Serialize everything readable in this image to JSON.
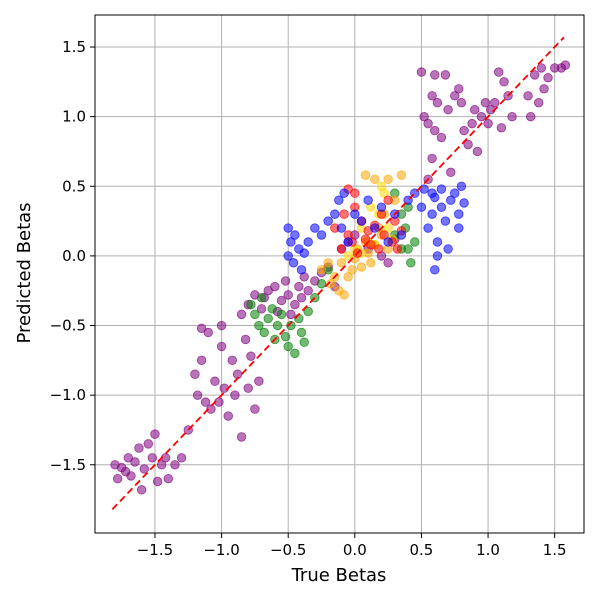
{
  "chart_data": {
    "type": "scatter",
    "xlabel": "True Betas",
    "ylabel": "Predicted Betas",
    "xlim": [
      -1.95,
      1.72
    ],
    "ylim": [
      -1.99,
      1.73
    ],
    "xticks": [
      -1.5,
      -1.0,
      -0.5,
      0.0,
      0.5,
      1.0,
      1.5
    ],
    "yticks": [
      -1.5,
      -1.0,
      -0.5,
      0.0,
      0.5,
      1.0,
      1.5
    ],
    "xtick_labels": [
      "−1.5",
      "−1.0",
      "−0.5",
      "0.0",
      "0.5",
      "1.0",
      "1.5"
    ],
    "ytick_labels": [
      "−1.5",
      "−1.0",
      "−0.5",
      "0.0",
      "0.5",
      "1.0",
      "1.5"
    ],
    "grid": true,
    "reference_line": {
      "x": [
        -1.82,
        1.57
      ],
      "y": [
        -1.82,
        1.57
      ],
      "color": "#ff0000",
      "style": "dashed"
    },
    "series": [
      {
        "color": "#800080",
        "points": [
          [
            -1.8,
            -1.5
          ],
          [
            -1.78,
            -1.6
          ],
          [
            -1.75,
            -1.52
          ],
          [
            -1.72,
            -1.55
          ],
          [
            -1.7,
            -1.45
          ],
          [
            -1.68,
            -1.58
          ],
          [
            -1.65,
            -1.48
          ],
          [
            -1.62,
            -1.38
          ],
          [
            -1.6,
            -1.68
          ],
          [
            -1.58,
            -1.53
          ],
          [
            -1.55,
            -1.35
          ],
          [
            -1.52,
            -1.45
          ],
          [
            -1.5,
            -1.28
          ],
          [
            -1.48,
            -1.62
          ],
          [
            -1.45,
            -1.5
          ],
          [
            -1.42,
            -1.45
          ],
          [
            -1.4,
            -1.6
          ],
          [
            -1.35,
            -1.5
          ],
          [
            -1.3,
            -1.45
          ],
          [
            -1.25,
            -1.25
          ],
          [
            -1.2,
            -0.85
          ],
          [
            -1.18,
            -1.0
          ],
          [
            -1.15,
            -0.75
          ],
          [
            -1.12,
            -1.05
          ],
          [
            -1.1,
            -0.55
          ],
          [
            -1.08,
            -1.1
          ],
          [
            -1.05,
            -0.9
          ],
          [
            -1.02,
            -1.05
          ],
          [
            -1.0,
            -0.65
          ],
          [
            -0.98,
            -0.95
          ],
          [
            -0.95,
            -1.15
          ],
          [
            -0.92,
            -0.75
          ],
          [
            -0.9,
            -1.0
          ],
          [
            -0.88,
            -0.85
          ],
          [
            -0.85,
            -1.3
          ],
          [
            -0.82,
            -0.6
          ],
          [
            -0.8,
            -0.95
          ],
          [
            -0.78,
            -0.72
          ],
          [
            -0.75,
            -1.1
          ],
          [
            -0.72,
            -0.9
          ],
          [
            -1.15,
            -0.52
          ],
          [
            -1.0,
            -0.5
          ],
          [
            -0.85,
            -0.42
          ],
          [
            -0.8,
            -0.35
          ],
          [
            -0.75,
            -0.28
          ],
          [
            -0.7,
            -0.38
          ],
          [
            -0.68,
            -0.3
          ],
          [
            -0.65,
            -0.25
          ],
          [
            -0.6,
            -0.22
          ],
          [
            -0.58,
            -0.4
          ],
          [
            -0.55,
            -0.32
          ],
          [
            -0.52,
            -0.18
          ],
          [
            -0.5,
            -0.28
          ],
          [
            -0.48,
            -0.42
          ],
          [
            -0.45,
            -0.35
          ],
          [
            -0.42,
            -0.22
          ],
          [
            -0.4,
            -0.3
          ],
          [
            -0.38,
            -0.15
          ],
          [
            -0.35,
            -0.25
          ],
          [
            -0.3,
            -0.18
          ],
          [
            -0.25,
            -0.12
          ],
          [
            -0.2,
            -0.08
          ],
          [
            -0.15,
            -0.22
          ],
          [
            -0.1,
            0.05
          ],
          [
            -0.05,
            0.1
          ],
          [
            0.0,
            0.15
          ],
          [
            0.1,
            0.05
          ],
          [
            0.2,
            0.0
          ],
          [
            0.3,
            0.12
          ],
          [
            0.25,
            -0.05
          ],
          [
            0.5,
            1.32
          ],
          [
            0.52,
            1.0
          ],
          [
            0.55,
            0.95
          ],
          [
            0.58,
            1.15
          ],
          [
            0.6,
            1.3
          ],
          [
            0.55,
            0.55
          ],
          [
            0.58,
            0.7
          ],
          [
            0.6,
            0.9
          ],
          [
            0.62,
            1.1
          ],
          [
            0.65,
            0.85
          ],
          [
            0.68,
            1.3
          ],
          [
            0.7,
            1.05
          ],
          [
            0.72,
            0.6
          ],
          [
            0.75,
            1.15
          ],
          [
            0.78,
            1.2
          ],
          [
            0.8,
            1.1
          ],
          [
            0.82,
            0.9
          ],
          [
            0.85,
            0.8
          ],
          [
            0.88,
            0.95
          ],
          [
            0.9,
            1.05
          ],
          [
            0.92,
            0.75
          ],
          [
            0.95,
            1.0
          ],
          [
            0.98,
            1.1
          ],
          [
            1.0,
            0.95
          ],
          [
            1.02,
            1.05
          ],
          [
            1.05,
            1.1
          ],
          [
            1.08,
            1.32
          ],
          [
            1.1,
            0.92
          ],
          [
            1.12,
            1.25
          ],
          [
            1.15,
            1.15
          ],
          [
            1.18,
            1.0
          ],
          [
            1.3,
            1.15
          ],
          [
            1.32,
            1.0
          ],
          [
            1.35,
            1.3
          ],
          [
            1.38,
            1.1
          ],
          [
            1.4,
            1.35
          ],
          [
            1.42,
            1.2
          ],
          [
            1.45,
            1.28
          ],
          [
            1.5,
            1.35
          ],
          [
            1.55,
            1.35
          ],
          [
            1.58,
            1.37
          ]
        ]
      },
      {
        "color": "#008000",
        "points": [
          [
            -0.78,
            -0.35
          ],
          [
            -0.75,
            -0.42
          ],
          [
            -0.72,
            -0.5
          ],
          [
            -0.7,
            -0.3
          ],
          [
            -0.68,
            -0.55
          ],
          [
            -0.65,
            -0.45
          ],
          [
            -0.62,
            -0.38
          ],
          [
            -0.6,
            -0.6
          ],
          [
            -0.58,
            -0.5
          ],
          [
            -0.55,
            -0.42
          ],
          [
            -0.52,
            -0.58
          ],
          [
            -0.5,
            -0.65
          ],
          [
            -0.48,
            -0.5
          ],
          [
            -0.45,
            -0.7
          ],
          [
            -0.42,
            -0.45
          ],
          [
            -0.4,
            -0.55
          ],
          [
            -0.38,
            -0.62
          ],
          [
            -0.35,
            -0.4
          ],
          [
            -0.3,
            -0.3
          ],
          [
            -0.25,
            -0.2
          ],
          [
            -0.2,
            -0.1
          ],
          [
            0.3,
            0.45
          ],
          [
            0.35,
            0.3
          ],
          [
            0.38,
            0.2
          ],
          [
            0.4,
            0.05
          ],
          [
            0.42,
            -0.05
          ],
          [
            0.45,
            0.1
          ],
          [
            0.4,
            0.35
          ],
          [
            0.3,
            0.15
          ],
          [
            0.35,
            0.05
          ]
        ]
      },
      {
        "color": "#ffa500",
        "points": [
          [
            -0.25,
            -0.1
          ],
          [
            -0.2,
            -0.05
          ],
          [
            -0.18,
            -0.2
          ],
          [
            -0.15,
            -0.15
          ],
          [
            -0.12,
            -0.25
          ],
          [
            -0.1,
            -0.05
          ],
          [
            -0.08,
            -0.28
          ],
          [
            -0.05,
            -0.15
          ],
          [
            -0.02,
            -0.1
          ],
          [
            0.0,
            -0.02
          ],
          [
            0.02,
            0.05
          ],
          [
            0.05,
            -0.08
          ],
          [
            0.08,
            0.1
          ],
          [
            0.1,
            0.02
          ],
          [
            0.12,
            -0.05
          ],
          [
            0.15,
            0.08
          ],
          [
            0.18,
            0.2
          ],
          [
            0.2,
            0.15
          ],
          [
            0.22,
            0.3
          ],
          [
            0.25,
            0.05
          ],
          [
            0.08,
            0.58
          ],
          [
            0.15,
            0.55
          ],
          [
            0.25,
            0.55
          ],
          [
            0.35,
            0.58
          ],
          [
            0.3,
            0.4
          ]
        ]
      },
      {
        "color": "#ffd700",
        "points": [
          [
            -0.05,
            0.0
          ],
          [
            0.0,
            0.05
          ],
          [
            0.05,
            0.02
          ],
          [
            0.1,
            0.1
          ],
          [
            0.15,
            0.08
          ],
          [
            0.18,
            0.3
          ],
          [
            0.2,
            0.5
          ],
          [
            0.22,
            0.45
          ],
          [
            0.25,
            0.2
          ],
          [
            0.28,
            0.12
          ],
          [
            0.12,
            0.35
          ],
          [
            0.05,
            0.2
          ]
        ]
      },
      {
        "color": "#ff0000",
        "points": [
          [
            -0.15,
            0.2
          ],
          [
            -0.1,
            0.05
          ],
          [
            -0.08,
            0.3
          ],
          [
            -0.05,
            0.15
          ],
          [
            -0.02,
            0.1
          ],
          [
            0.0,
            0.35
          ],
          [
            0.02,
            0.02
          ],
          [
            0.05,
            0.25
          ],
          [
            0.08,
            0.12
          ],
          [
            0.1,
            0.18
          ],
          [
            0.12,
            0.08
          ],
          [
            0.15,
            0.22
          ],
          [
            0.18,
            0.05
          ],
          [
            0.2,
            0.3
          ],
          [
            0.22,
            0.15
          ],
          [
            0.25,
            0.4
          ],
          [
            0.28,
            0.1
          ],
          [
            0.3,
            0.25
          ],
          [
            0.32,
            0.05
          ],
          [
            0.35,
            0.18
          ],
          [
            -0.05,
            0.48
          ],
          [
            0.0,
            0.45
          ]
        ]
      },
      {
        "color": "#0000ff",
        "points": [
          [
            -0.5,
            0.2
          ],
          [
            -0.5,
            0.0
          ],
          [
            -0.48,
            0.1
          ],
          [
            -0.46,
            -0.05
          ],
          [
            -0.45,
            0.15
          ],
          [
            -0.42,
            0.05
          ],
          [
            -0.4,
            -0.1
          ],
          [
            -0.38,
            0.02
          ],
          [
            -0.35,
            0.1
          ],
          [
            -0.3,
            0.2
          ],
          [
            -0.25,
            0.15
          ],
          [
            -0.2,
            0.25
          ],
          [
            -0.15,
            0.3
          ],
          [
            -0.12,
            0.4
          ],
          [
            -0.1,
            0.2
          ],
          [
            -0.08,
            0.45
          ],
          [
            -0.05,
            0.1
          ],
          [
            0.0,
            0.3
          ],
          [
            0.05,
            0.25
          ],
          [
            0.1,
            0.4
          ],
          [
            0.15,
            0.2
          ],
          [
            0.2,
            0.35
          ],
          [
            0.25,
            0.1
          ],
          [
            0.3,
            0.3
          ],
          [
            0.35,
            0.15
          ],
          [
            0.4,
            0.4
          ],
          [
            0.45,
            0.45
          ],
          [
            0.5,
            0.35
          ],
          [
            0.52,
            0.48
          ],
          [
            0.55,
            0.2
          ],
          [
            0.58,
            0.3
          ],
          [
            0.6,
            0.42
          ],
          [
            0.62,
            0.1
          ],
          [
            0.65,
            0.35
          ],
          [
            0.68,
            0.25
          ],
          [
            0.7,
            0.05
          ],
          [
            0.72,
            0.4
          ],
          [
            0.75,
            0.45
          ],
          [
            0.78,
            0.3
          ],
          [
            0.8,
            0.5
          ],
          [
            0.82,
            0.38
          ],
          [
            0.6,
            -0.1
          ],
          [
            0.62,
            0.0
          ],
          [
            0.78,
            0.2
          ],
          [
            0.58,
            0.45
          ],
          [
            0.65,
            0.48
          ]
        ]
      }
    ]
  }
}
